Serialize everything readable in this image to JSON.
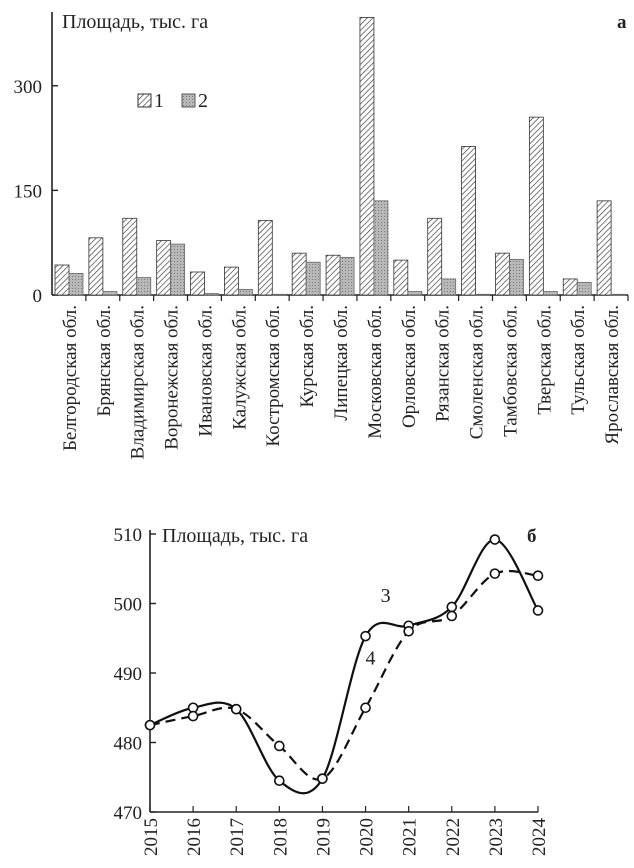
{
  "chart_data": [
    {
      "type": "bar",
      "panel": "а",
      "ylabel": "Площадь, тыс. га",
      "ylim": [
        0,
        400
      ],
      "yticks": [
        0,
        150,
        300
      ],
      "legend_position": "top-left",
      "categories": [
        "Белгородская обл.",
        "Брянская обл.",
        "Владимирская обл.",
        "Воронежская обл.",
        "Ивановская обл.",
        "Калужская обл.",
        "Костромская обл.",
        "Курская обл.",
        "Липецкая обл.",
        "Московская обл.",
        "Орловская обл.",
        "Рязанская обл.",
        "Смоленская обл.",
        "Тамбовская обл.",
        "Тверская обл.",
        "Тульская обл.",
        "Ярославская обл."
      ],
      "series": [
        {
          "name": "1",
          "pattern": "hatched",
          "color": "#e8e8e8",
          "values": [
            43,
            82,
            110,
            78,
            33,
            40,
            107,
            60,
            57,
            398,
            50,
            110,
            213,
            60,
            255,
            23,
            135
          ]
        },
        {
          "name": "2",
          "pattern": "gray",
          "color": "#a9a9a9",
          "values": [
            31,
            5,
            25,
            73,
            2,
            8,
            1,
            47,
            54,
            135,
            5,
            23,
            1,
            51,
            5,
            18,
            1
          ]
        }
      ]
    },
    {
      "type": "line",
      "panel": "б",
      "ylabel": "Площадь, тыс. га",
      "ylim": [
        470,
        510
      ],
      "yticks": [
        470,
        480,
        490,
        500,
        510
      ],
      "x": [
        2015,
        2016,
        2017,
        2018,
        2019,
        2020,
        2021,
        2022,
        2023,
        2024
      ],
      "series": [
        {
          "name": "3",
          "style": "solid",
          "values": [
            482.5,
            485,
            484.8,
            474.5,
            474.8,
            495.3,
            496.8,
            499.5,
            509.2,
            499
          ]
        },
        {
          "name": "4",
          "style": "dashed",
          "values": [
            482.5,
            483.8,
            484.8,
            479.5,
            474.8,
            485,
            496,
            498.2,
            504.3,
            504
          ]
        }
      ]
    }
  ]
}
